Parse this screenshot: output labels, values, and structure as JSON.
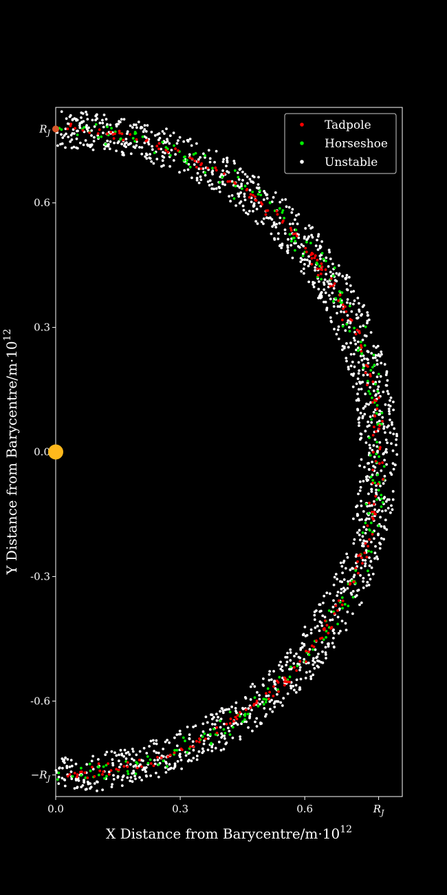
{
  "chart_data": {
    "type": "scatter",
    "title": "",
    "xlabel": "X Distance from Barycentre/m·10",
    "xlabel_exp": "12",
    "ylabel": "Y Distance from Barycentre/m·10",
    "ylabel_exp": "12",
    "xlim": [
      0.0,
      0.835
    ],
    "ylim": [
      -0.83,
      0.83
    ],
    "x_ticks": [
      {
        "value": 0.0,
        "label": "0.0"
      },
      {
        "value": 0.3,
        "label": "0.3"
      },
      {
        "value": 0.6,
        "label": "0.6"
      },
      {
        "value": 0.778,
        "label": "R",
        "sub": "J"
      }
    ],
    "y_ticks": [
      {
        "value": 0.778,
        "label": "R",
        "sub": "J"
      },
      {
        "value": 0.6,
        "label": "0.6"
      },
      {
        "value": 0.3,
        "label": "0.3"
      },
      {
        "value": 0.0,
        "label": "0.0"
      },
      {
        "value": -0.3,
        "label": "-0.3"
      },
      {
        "value": -0.6,
        "label": "-0.6"
      },
      {
        "value": -0.778,
        "label": "−R",
        "sub": "J"
      }
    ],
    "grid": false,
    "legend_position": "top-right",
    "orbit_radius_RJ": 0.778,
    "sun": {
      "x": 0.0,
      "y": 0.0,
      "color": "#ffb81c"
    },
    "planet": {
      "x": 0.0,
      "y": 0.778,
      "color": "#d9572b"
    },
    "series": [
      {
        "name": "Tadpole",
        "color": "#ff0000",
        "count": 260,
        "radial_spread": 0.006,
        "angle_range_deg": [
          -88,
          88
        ]
      },
      {
        "name": "Horseshoe",
        "color": "#00ee00",
        "count": 260,
        "radial_spread": 0.012,
        "angle_range_deg": [
          -90,
          90
        ]
      },
      {
        "name": "Unstable",
        "color": "#ffffff",
        "count": 1500,
        "radial_spread": 0.045,
        "angle_range_deg": [
          -91,
          91
        ]
      }
    ]
  }
}
